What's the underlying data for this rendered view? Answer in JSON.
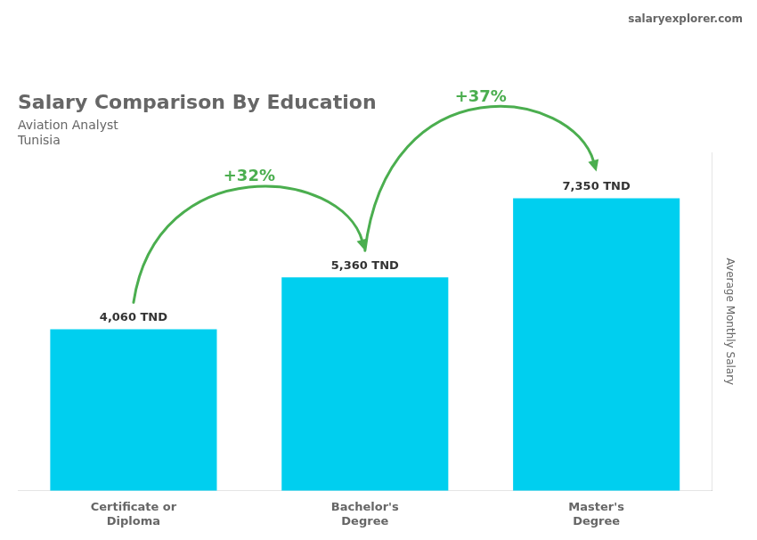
{
  "chart_data": {
    "type": "bar",
    "title": "Salary Comparison By Education",
    "subtitle": [
      "Aviation Analyst",
      "Tunisia"
    ],
    "ylabel": "Average Monthly Salary",
    "categories": [
      "Certificate or\nDiploma",
      "Bachelor's\nDegree",
      "Master's\nDegree"
    ],
    "values": [
      4060,
      5360,
      7350
    ],
    "value_labels": [
      "4,060 TND",
      "5,360 TND",
      "7,350 TND"
    ],
    "data_labels": true,
    "color": "#00CFEF",
    "ylim": [
      0,
      8500
    ],
    "grid": false,
    "tick_labels": "x",
    "annotations": [
      {
        "text": "+32%",
        "from": 0,
        "to": 1
      },
      {
        "text": "+37%",
        "from": 1,
        "to": 2
      },
      {
        "text": "salaryexplorer.com"
      }
    ]
  }
}
